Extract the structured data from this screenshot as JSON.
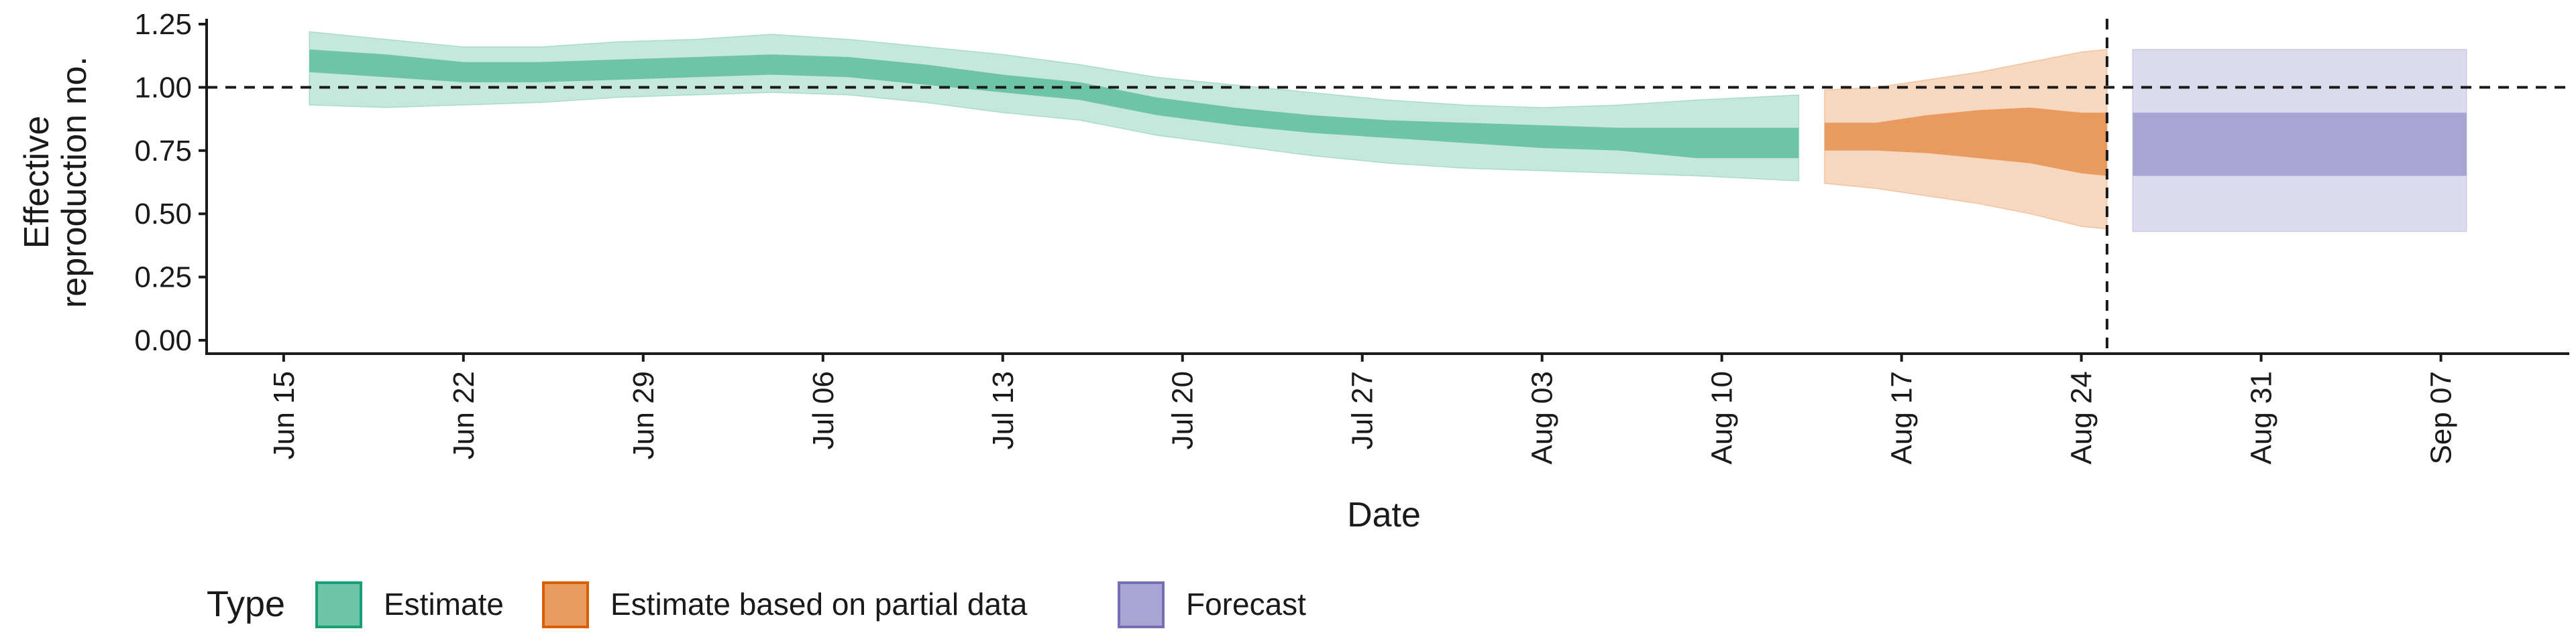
{
  "chart_data": {
    "type": "area",
    "title": "",
    "xlabel": "Date",
    "ylabel_lines": [
      "Effective",
      "reproduction no."
    ],
    "ylim": [
      0,
      1.25
    ],
    "yticks": [
      0.0,
      0.25,
      0.5,
      0.75,
      1.0,
      1.25
    ],
    "ytick_labels": [
      "0.00",
      "0.25",
      "0.50",
      "0.75",
      "1.00",
      "1.25"
    ],
    "x_range": [
      "2020-06-12",
      "2020-09-12"
    ],
    "xtick_dates": [
      "2020-06-15",
      "2020-06-22",
      "2020-06-29",
      "2020-07-06",
      "2020-07-13",
      "2020-07-20",
      "2020-07-27",
      "2020-08-03",
      "2020-08-10",
      "2020-08-17",
      "2020-08-24",
      "2020-08-31",
      "2020-09-07"
    ],
    "xtick_labels": [
      "Jun 15",
      "Jun 22",
      "Jun 29",
      "Jul 06",
      "Jul 13",
      "Jul 20",
      "Jul 27",
      "Aug 03",
      "Aug 10",
      "Aug 17",
      "Aug 24",
      "Aug 31",
      "Sep 07"
    ],
    "reference_line_y": 1.0,
    "reference_line_date": "2020-08-25",
    "legend": {
      "title": "Type",
      "position": "bottom-left",
      "entries": [
        "Estimate",
        "Estimate based on partial data",
        "Forecast"
      ]
    },
    "colors": {
      "Estimate": "#6ec4a7",
      "Estimate based on partial data": "#e89a5f",
      "Forecast": "#a8a5d3",
      "Estimate_border": "#1b9e77",
      "Estimate based on partial data_border": "#d95f02",
      "Forecast_border": "#7570b3"
    },
    "series": [
      {
        "name": "Estimate",
        "dates": [
          "2020-06-16",
          "2020-06-19",
          "2020-06-22",
          "2020-06-25",
          "2020-06-28",
          "2020-07-01",
          "2020-07-04",
          "2020-07-07",
          "2020-07-10",
          "2020-07-13",
          "2020-07-16",
          "2020-07-19",
          "2020-07-22",
          "2020-07-25",
          "2020-07-28",
          "2020-07-31",
          "2020-08-03",
          "2020-08-06",
          "2020-08-09",
          "2020-08-13"
        ],
        "lower90": [
          0.93,
          0.92,
          0.93,
          0.94,
          0.96,
          0.97,
          0.98,
          0.97,
          0.94,
          0.9,
          0.87,
          0.81,
          0.77,
          0.73,
          0.7,
          0.68,
          0.67,
          0.66,
          0.65,
          0.63
        ],
        "lower50": [
          1.06,
          1.04,
          1.02,
          1.02,
          1.03,
          1.04,
          1.05,
          1.04,
          1.01,
          0.98,
          0.95,
          0.89,
          0.85,
          0.82,
          0.8,
          0.78,
          0.76,
          0.75,
          0.72,
          0.72
        ],
        "upper50": [
          1.15,
          1.13,
          1.1,
          1.1,
          1.11,
          1.12,
          1.13,
          1.12,
          1.09,
          1.05,
          1.02,
          0.96,
          0.92,
          0.89,
          0.87,
          0.86,
          0.85,
          0.84,
          0.84,
          0.84
        ],
        "upper90": [
          1.22,
          1.19,
          1.16,
          1.16,
          1.18,
          1.19,
          1.21,
          1.19,
          1.16,
          1.13,
          1.09,
          1.04,
          1.01,
          0.98,
          0.95,
          0.93,
          0.92,
          0.93,
          0.95,
          0.97
        ]
      },
      {
        "name": "Estimate based on partial data",
        "dates": [
          "2020-08-14",
          "2020-08-16",
          "2020-08-18",
          "2020-08-20",
          "2020-08-22",
          "2020-08-24",
          "2020-08-25"
        ],
        "lower90": [
          0.62,
          0.6,
          0.57,
          0.54,
          0.5,
          0.45,
          0.44
        ],
        "lower50": [
          0.75,
          0.75,
          0.74,
          0.72,
          0.7,
          0.66,
          0.65
        ],
        "upper50": [
          0.86,
          0.86,
          0.89,
          0.91,
          0.92,
          0.9,
          0.9
        ],
        "upper90": [
          0.99,
          1.0,
          1.03,
          1.06,
          1.1,
          1.14,
          1.15
        ]
      },
      {
        "name": "Forecast",
        "dates": [
          "2020-08-26",
          "2020-09-08"
        ],
        "lower90": [
          0.43,
          0.43
        ],
        "lower50": [
          0.65,
          0.65
        ],
        "upper50": [
          0.9,
          0.9
        ],
        "upper90": [
          1.15,
          1.15
        ]
      }
    ]
  }
}
